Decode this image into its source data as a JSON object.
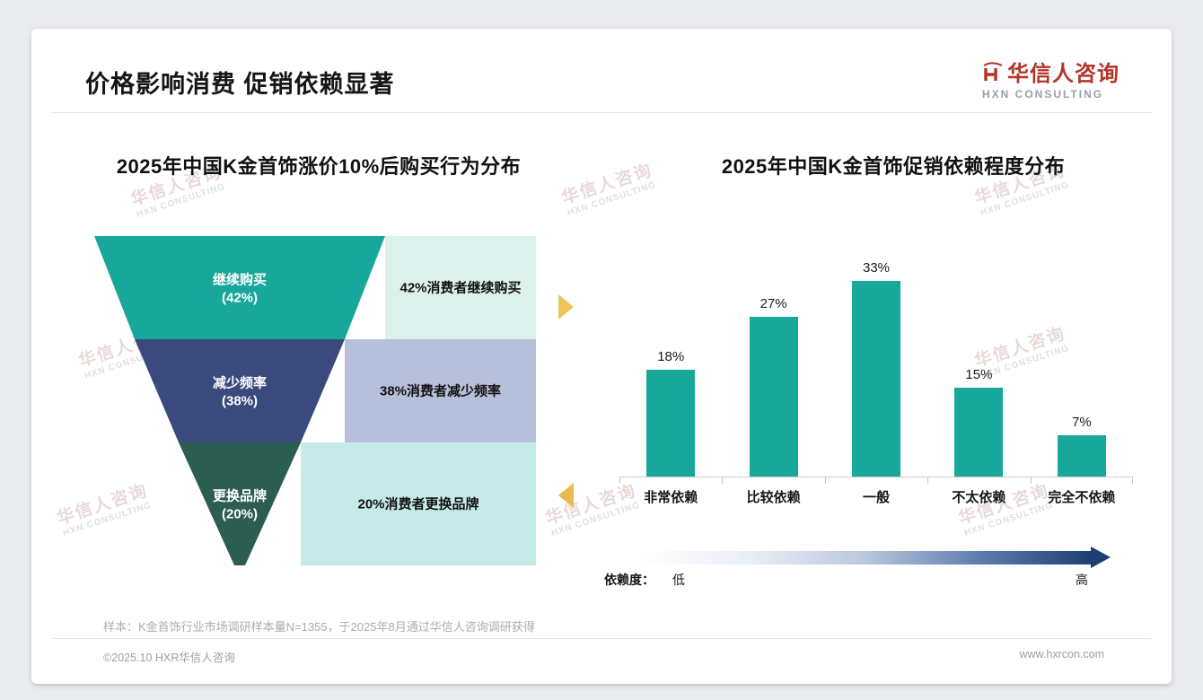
{
  "slide": {
    "title": "价格影响消费 促销依赖显著",
    "logo": {
      "name": "华信人咨询",
      "tagline": "HXN CONSULTING",
      "accent": "#b5342a"
    },
    "watermark": {
      "line1": "华信人咨询",
      "line2": "HXN CONSULTING"
    },
    "sample_note": "样本：K金首饰行业市场调研样本量N=1355，于2025年8月通过华信人咨询调研获得",
    "copyright": "©2025.10 HXR华信人咨询",
    "website": "www.hxrcon.com"
  },
  "chart_data": [
    {
      "type": "funnel",
      "title": "2025年中国K金首饰涨价10%后购买行为分布",
      "segments": [
        {
          "label": "继续购买",
          "pct": "42%",
          "value": 42,
          "desc": "42%消费者继续购买",
          "color": "#17a89b",
          "desc_bg": "#ddf1ec"
        },
        {
          "label": "减少频率",
          "pct": "38%",
          "value": 38,
          "desc": "38%消费者减少频率",
          "color": "#3b4a7d",
          "desc_bg": "#b6c0da"
        },
        {
          "label": "更换品牌",
          "pct": "20%",
          "value": 20,
          "desc": "20%消费者更换品牌",
          "color": "#2b5e51",
          "desc_bg": "#c6eae8"
        }
      ]
    },
    {
      "type": "bar",
      "title": "2025年中国K金首饰促销依赖程度分布",
      "categories": [
        "非常依赖",
        "比较依赖",
        "一般",
        "不太依赖",
        "完全不依赖"
      ],
      "values": [
        18,
        27,
        33,
        15,
        7
      ],
      "labels": [
        "18%",
        "27%",
        "33%",
        "15%",
        "7%"
      ],
      "bar_color": "#17a89b",
      "ylim": [
        0,
        35
      ],
      "axis": {
        "label": "依赖度：",
        "low": "低",
        "high": "高",
        "gradient": [
          "#ffffff",
          "#1d3f76"
        ]
      }
    }
  ]
}
